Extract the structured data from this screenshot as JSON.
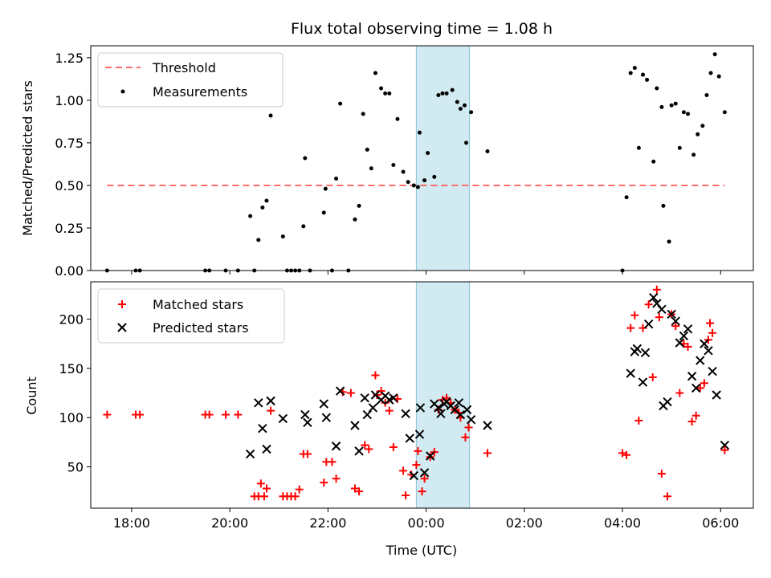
{
  "chart_data": [
    {
      "type": "scatter",
      "title": "Flux total observing time = 1.08 h",
      "xlabel": "",
      "ylabel": "Matched/Predicted stars",
      "xlim": [
        "17:10",
        "06:40"
      ],
      "ylim": [
        0,
        1.32
      ],
      "yticks": [
        "0.00",
        "0.25",
        "0.50",
        "0.75",
        "1.00",
        "1.25"
      ],
      "legend_position": "top-left",
      "shaded_band": {
        "x0": "23:48",
        "x1": "00:53",
        "color": "#add8e6"
      },
      "threshold": {
        "name": "Threshold",
        "value": 0.5,
        "x0": "17:30",
        "x1": "06:05",
        "color": "#ff6b6b"
      },
      "series": [
        {
          "name": "Measurements",
          "color": "#000000",
          "points": [
            [
              "17:30",
              0.0
            ],
            [
              "18:05",
              0.0
            ],
            [
              "18:10",
              0.0
            ],
            [
              "19:30",
              0.0
            ],
            [
              "19:35",
              0.0
            ],
            [
              "19:55",
              0.0
            ],
            [
              "20:10",
              0.0
            ],
            [
              "20:30",
              0.0
            ],
            [
              "20:25",
              0.32
            ],
            [
              "20:35",
              0.18
            ],
            [
              "20:40",
              0.37
            ],
            [
              "20:45",
              0.41
            ],
            [
              "20:50",
              0.91
            ],
            [
              "21:05",
              0.2
            ],
            [
              "21:10",
              0.0
            ],
            [
              "21:15",
              0.0
            ],
            [
              "21:20",
              0.0
            ],
            [
              "21:25",
              0.0
            ],
            [
              "21:30",
              0.26
            ],
            [
              "21:32",
              0.66
            ],
            [
              "21:38",
              0.0
            ],
            [
              "21:55",
              0.34
            ],
            [
              "21:57",
              0.48
            ],
            [
              "22:05",
              0.0
            ],
            [
              "22:10",
              0.54
            ],
            [
              "22:15",
              0.98
            ],
            [
              "22:25",
              0.0
            ],
            [
              "22:33",
              0.3
            ],
            [
              "22:38",
              0.38
            ],
            [
              "22:43",
              0.92
            ],
            [
              "22:48",
              0.71
            ],
            [
              "22:53",
              0.6
            ],
            [
              "22:58",
              1.16
            ],
            [
              "23:05",
              1.07
            ],
            [
              "23:10",
              1.04
            ],
            [
              "23:15",
              1.04
            ],
            [
              "23:20",
              0.62
            ],
            [
              "23:25",
              0.89
            ],
            [
              "23:32",
              0.58
            ],
            [
              "23:38",
              0.52
            ],
            [
              "23:45",
              0.5
            ],
            [
              "23:50",
              0.49
            ],
            [
              "23:52",
              0.81
            ],
            [
              "23:58",
              0.53
            ],
            [
              "00:02",
              0.69
            ],
            [
              "00:10",
              0.55
            ],
            [
              "00:15",
              1.03
            ],
            [
              "00:20",
              1.04
            ],
            [
              "00:25",
              1.04
            ],
            [
              "00:32",
              1.06
            ],
            [
              "00:38",
              0.99
            ],
            [
              "00:42",
              0.95
            ],
            [
              "00:47",
              0.97
            ],
            [
              "00:49",
              0.75
            ],
            [
              "00:55",
              0.93
            ],
            [
              "01:15",
              0.7
            ],
            [
              "04:00",
              0.0
            ],
            [
              "04:05",
              0.43
            ],
            [
              "04:10",
              1.16
            ],
            [
              "04:15",
              1.19
            ],
            [
              "04:20",
              0.72
            ],
            [
              "04:25",
              1.15
            ],
            [
              "04:30",
              1.12
            ],
            [
              "04:38",
              0.64
            ],
            [
              "04:42",
              1.07
            ],
            [
              "04:48",
              0.96
            ],
            [
              "04:50",
              0.38
            ],
            [
              "04:57",
              0.17
            ],
            [
              "05:00",
              0.97
            ],
            [
              "05:05",
              0.98
            ],
            [
              "05:10",
              0.72
            ],
            [
              "05:15",
              0.93
            ],
            [
              "05:20",
              0.92
            ],
            [
              "05:27",
              0.68
            ],
            [
              "05:32",
              0.8
            ],
            [
              "05:38",
              0.85
            ],
            [
              "05:43",
              1.03
            ],
            [
              "05:48",
              1.16
            ],
            [
              "05:53",
              1.27
            ],
            [
              "05:58",
              1.14
            ],
            [
              "06:05",
              0.93
            ]
          ]
        }
      ]
    },
    {
      "type": "scatter",
      "title": "",
      "xlabel": "Time (UTC)",
      "ylabel": "Count",
      "xlim": [
        "17:10",
        "06:40"
      ],
      "ylim": [
        8,
        238
      ],
      "yticks": [
        "50",
        "100",
        "150",
        "200"
      ],
      "xticks": [
        "18:00",
        "20:00",
        "22:00",
        "00:00",
        "02:00",
        "04:00",
        "06:00"
      ],
      "legend_position": "top-left",
      "shaded_band": {
        "x0": "23:48",
        "x1": "00:53",
        "color": "#add8e6"
      },
      "series": [
        {
          "name": "Matched stars",
          "marker": "plus",
          "color": "#ff0000",
          "points": [
            [
              "17:30",
              103
            ],
            [
              "18:05",
              103
            ],
            [
              "18:10",
              103
            ],
            [
              "19:30",
              103
            ],
            [
              "19:35",
              103
            ],
            [
              "19:55",
              103
            ],
            [
              "20:10",
              103
            ],
            [
              "20:30",
              20
            ],
            [
              "20:35",
              20
            ],
            [
              "20:38",
              33
            ],
            [
              "20:42",
              20
            ],
            [
              "20:45",
              28
            ],
            [
              "20:50",
              107
            ],
            [
              "21:05",
              20
            ],
            [
              "21:10",
              20
            ],
            [
              "21:15",
              20
            ],
            [
              "21:20",
              20
            ],
            [
              "21:25",
              27
            ],
            [
              "21:30",
              63
            ],
            [
              "21:35",
              63
            ],
            [
              "21:55",
              34
            ],
            [
              "21:58",
              55
            ],
            [
              "22:05",
              55
            ],
            [
              "22:10",
              38
            ],
            [
              "22:18",
              126
            ],
            [
              "22:28",
              125
            ],
            [
              "22:33",
              28
            ],
            [
              "22:38",
              25
            ],
            [
              "22:45",
              72
            ],
            [
              "22:50",
              68
            ],
            [
              "22:58",
              143
            ],
            [
              "23:00",
              123
            ],
            [
              "23:05",
              127
            ],
            [
              "23:10",
              115
            ],
            [
              "23:15",
              107
            ],
            [
              "23:20",
              70
            ],
            [
              "23:25",
              119
            ],
            [
              "23:32",
              46
            ],
            [
              "23:35",
              21
            ],
            [
              "23:42",
              42
            ],
            [
              "23:48",
              52
            ],
            [
              "23:50",
              66
            ],
            [
              "23:55",
              25
            ],
            [
              "23:58",
              38
            ],
            [
              "00:05",
              60
            ],
            [
              "00:10",
              65
            ],
            [
              "00:15",
              108
            ],
            [
              "00:20",
              118
            ],
            [
              "00:25",
              120
            ],
            [
              "00:30",
              115
            ],
            [
              "00:35",
              108
            ],
            [
              "00:40",
              105
            ],
            [
              "00:42",
              100
            ],
            [
              "00:48",
              80
            ],
            [
              "00:52",
              90
            ],
            [
              "01:15",
              64
            ],
            [
              "04:00",
              64
            ],
            [
              "04:05",
              62
            ],
            [
              "04:10",
              191
            ],
            [
              "04:15",
              204
            ],
            [
              "04:20",
              97
            ],
            [
              "04:25",
              191
            ],
            [
              "04:32",
              215
            ],
            [
              "04:37",
              141
            ],
            [
              "04:42",
              230
            ],
            [
              "04:45",
              202
            ],
            [
              "04:48",
              43
            ],
            [
              "04:55",
              20
            ],
            [
              "05:00",
              205
            ],
            [
              "05:05",
              193
            ],
            [
              "05:10",
              125
            ],
            [
              "05:15",
              175
            ],
            [
              "05:20",
              172
            ],
            [
              "05:25",
              96
            ],
            [
              "05:30",
              102
            ],
            [
              "05:35",
              130
            ],
            [
              "05:40",
              135
            ],
            [
              "05:45",
              179
            ],
            [
              "05:47",
              196
            ],
            [
              "05:50",
              186
            ],
            [
              "06:05",
              67
            ]
          ]
        },
        {
          "name": "Predicted stars",
          "marker": "x",
          "color": "#000000",
          "points": [
            [
              "20:25",
              63
            ],
            [
              "20:35",
              115
            ],
            [
              "20:40",
              89
            ],
            [
              "20:45",
              68
            ],
            [
              "20:50",
              117
            ],
            [
              "21:05",
              99
            ],
            [
              "21:32",
              103
            ],
            [
              "21:35",
              95
            ],
            [
              "21:55",
              114
            ],
            [
              "21:58",
              100
            ],
            [
              "22:10",
              71
            ],
            [
              "22:15",
              127
            ],
            [
              "22:33",
              92
            ],
            [
              "22:38",
              66
            ],
            [
              "22:45",
              120
            ],
            [
              "22:48",
              103
            ],
            [
              "22:55",
              110
            ],
            [
              "22:58",
              123
            ],
            [
              "23:05",
              118
            ],
            [
              "23:10",
              122
            ],
            [
              "23:15",
              118
            ],
            [
              "23:20",
              120
            ],
            [
              "23:35",
              104
            ],
            [
              "23:40",
              79
            ],
            [
              "23:45",
              41
            ],
            [
              "23:52",
              83
            ],
            [
              "23:53",
              110
            ],
            [
              "23:58",
              44
            ],
            [
              "00:05",
              61
            ],
            [
              "00:10",
              114
            ],
            [
              "00:15",
              110
            ],
            [
              "00:18",
              104
            ],
            [
              "00:22",
              114
            ],
            [
              "00:25",
              116
            ],
            [
              "00:30",
              112
            ],
            [
              "00:35",
              108
            ],
            [
              "00:40",
              115
            ],
            [
              "00:42",
              103
            ],
            [
              "00:50",
              108
            ],
            [
              "00:55",
              98
            ],
            [
              "01:15",
              92
            ],
            [
              "04:10",
              145
            ],
            [
              "04:15",
              167
            ],
            [
              "04:18",
              170
            ],
            [
              "04:25",
              136
            ],
            [
              "04:28",
              166
            ],
            [
              "04:32",
              195
            ],
            [
              "04:38",
              222
            ],
            [
              "04:42",
              216
            ],
            [
              "04:48",
              210
            ],
            [
              "04:50",
              112
            ],
            [
              "04:55",
              116
            ],
            [
              "05:00",
              205
            ],
            [
              "05:05",
              198
            ],
            [
              "05:10",
              176
            ],
            [
              "05:15",
              183
            ],
            [
              "05:20",
              190
            ],
            [
              "05:25",
              142
            ],
            [
              "05:30",
              130
            ],
            [
              "05:35",
              158
            ],
            [
              "05:40",
              175
            ],
            [
              "05:45",
              168
            ],
            [
              "05:50",
              147
            ],
            [
              "05:55",
              123
            ],
            [
              "06:05",
              72
            ]
          ]
        }
      ]
    }
  ]
}
